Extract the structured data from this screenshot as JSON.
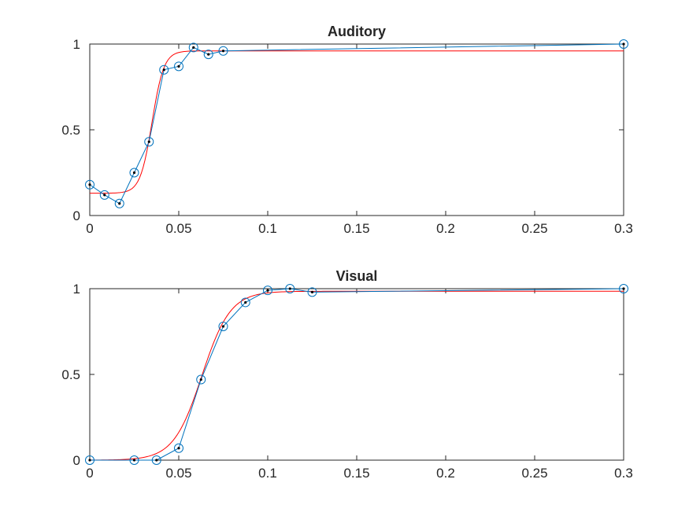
{
  "chart_data": [
    {
      "type": "line",
      "title": "Auditory",
      "xlim": [
        0,
        0.3
      ],
      "ylim": [
        0,
        1
      ],
      "xticks": [
        0,
        0.05,
        0.1,
        0.15,
        0.2,
        0.25,
        0.3
      ],
      "xtick_labels": [
        "0",
        "0.05",
        "0.1",
        "0.15",
        "0.2",
        "0.25",
        "0.3"
      ],
      "yticks": [
        0,
        0.5,
        1
      ],
      "ytick_labels": [
        "0",
        "0.5",
        "1"
      ],
      "series": [
        {
          "kind": "data",
          "color": "#0072BD",
          "x": [
            0,
            0.0083,
            0.0167,
            0.025,
            0.0333,
            0.0417,
            0.05,
            0.0583,
            0.0667,
            0.075,
            0.3
          ],
          "y": [
            0.18,
            0.12,
            0.07,
            0.25,
            0.43,
            0.85,
            0.87,
            0.98,
            0.94,
            0.96,
            1.0
          ]
        },
        {
          "kind": "fit",
          "color": "#FF0000",
          "function": "logistic",
          "lower": 0.13,
          "upper": 0.96,
          "midpoint": 0.035,
          "slope": 300
        }
      ]
    },
    {
      "type": "line",
      "title": "Visual",
      "xlim": [
        0,
        0.3
      ],
      "ylim": [
        0,
        1
      ],
      "xticks": [
        0,
        0.05,
        0.1,
        0.15,
        0.2,
        0.25,
        0.3
      ],
      "xtick_labels": [
        "0",
        "0.05",
        "0.1",
        "0.15",
        "0.2",
        "0.25",
        "0.3"
      ],
      "yticks": [
        0,
        0.5,
        1
      ],
      "ytick_labels": [
        "0",
        "0.5",
        "1"
      ],
      "series": [
        {
          "kind": "data",
          "color": "#0072BD",
          "x": [
            0,
            0.025,
            0.0375,
            0.05,
            0.0625,
            0.075,
            0.0875,
            0.1,
            0.1125,
            0.125,
            0.3
          ],
          "y": [
            0.0,
            0.0,
            0.0,
            0.07,
            0.47,
            0.78,
            0.92,
            0.99,
            1.0,
            0.98,
            1.0
          ]
        },
        {
          "kind": "fit",
          "color": "#FF0000",
          "function": "logistic",
          "lower": 0.0,
          "upper": 0.985,
          "midpoint": 0.063,
          "slope": 125
        }
      ]
    }
  ]
}
